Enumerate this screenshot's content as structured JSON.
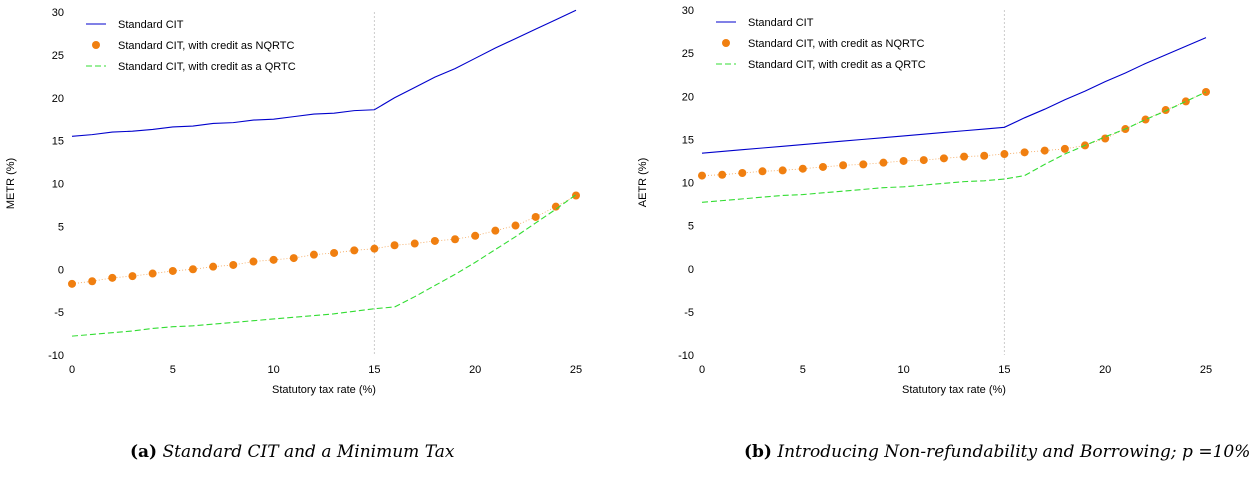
{
  "captions": {
    "left_prefix": "(a)",
    "left_text": "Standard CIT and a Minimum Tax",
    "right_prefix": "(b)",
    "right_text": "Introducing Non-refundability and Borrowing; p =10%"
  },
  "chart_data": [
    {
      "type": "line",
      "title": "",
      "xlabel": "Statutory tax rate (%)",
      "ylabel": "METR (%)",
      "xlim": [
        0,
        25
      ],
      "ylim": [
        -10,
        30
      ],
      "xticks": [
        0,
        5,
        10,
        15,
        20,
        25
      ],
      "yticks": [
        -10,
        -5,
        0,
        5,
        10,
        15,
        20,
        25,
        30
      ],
      "vline_x": 15,
      "legend_position": "top-left",
      "x": [
        0,
        1,
        2,
        3,
        4,
        5,
        6,
        7,
        8,
        9,
        10,
        11,
        12,
        13,
        14,
        15,
        16,
        17,
        18,
        19,
        20,
        21,
        22,
        23,
        24,
        25
      ],
      "series": [
        {
          "name": "Standard CIT",
          "color": "#0000cc",
          "style": "solid",
          "values": [
            15.5,
            15.7,
            16.0,
            16.1,
            16.3,
            16.6,
            16.7,
            17.0,
            17.1,
            17.4,
            17.5,
            17.8,
            18.1,
            18.2,
            18.5,
            18.6,
            20.0,
            21.2,
            22.4,
            23.4,
            24.6,
            25.8,
            26.9,
            28.0,
            29.1,
            30.2
          ]
        },
        {
          "name": "Standard CIT, with credit as NQRTC",
          "color": "#f07f10",
          "style": "dots",
          "values": [
            -1.7,
            -1.4,
            -1.0,
            -0.8,
            -0.5,
            -0.2,
            0.0,
            0.3,
            0.5,
            0.9,
            1.1,
            1.3,
            1.7,
            1.9,
            2.2,
            2.4,
            2.8,
            3.0,
            3.3,
            3.5,
            3.9,
            4.5,
            5.1,
            6.1,
            7.3,
            8.6
          ]
        },
        {
          "name": "Standard CIT, with credit as a QRTC",
          "color": "#33dd33",
          "style": "dashed",
          "values": [
            -7.8,
            -7.6,
            -7.4,
            -7.2,
            -6.9,
            -6.7,
            -6.6,
            -6.4,
            -6.2,
            -6.0,
            -5.8,
            -5.6,
            -5.4,
            -5.2,
            -4.9,
            -4.6,
            -4.4,
            -3.2,
            -1.9,
            -0.6,
            0.8,
            2.3,
            3.8,
            5.4,
            7.0,
            8.7
          ]
        }
      ]
    },
    {
      "type": "line",
      "title": "",
      "xlabel": "Statutory tax rate (%)",
      "ylabel": "AETR (%)",
      "xlim": [
        0,
        25
      ],
      "ylim": [
        -10,
        30
      ],
      "xticks": [
        0,
        5,
        10,
        15,
        20,
        25
      ],
      "yticks": [
        -10,
        -5,
        0,
        5,
        10,
        15,
        20,
        25,
        30
      ],
      "vline_x": 15,
      "legend_position": "top-left",
      "x": [
        0,
        1,
        2,
        3,
        4,
        5,
        6,
        7,
        8,
        9,
        10,
        11,
        12,
        13,
        14,
        15,
        16,
        17,
        18,
        19,
        20,
        21,
        22,
        23,
        24,
        25
      ],
      "series": [
        {
          "name": "Standard CIT",
          "color": "#0000cc",
          "style": "solid",
          "values": [
            13.4,
            13.6,
            13.8,
            14.0,
            14.2,
            14.4,
            14.6,
            14.8,
            15.0,
            15.2,
            15.4,
            15.6,
            15.8,
            16.0,
            16.2,
            16.4,
            17.5,
            18.5,
            19.6,
            20.6,
            21.7,
            22.7,
            23.8,
            24.8,
            25.8,
            26.8
          ]
        },
        {
          "name": "Standard CIT, with credit as NQRTC",
          "color": "#f07f10",
          "style": "dots",
          "values": [
            10.8,
            10.9,
            11.1,
            11.3,
            11.4,
            11.6,
            11.8,
            12.0,
            12.1,
            12.3,
            12.5,
            12.6,
            12.8,
            13.0,
            13.1,
            13.3,
            13.5,
            13.7,
            13.9,
            14.3,
            15.1,
            16.2,
            17.3,
            18.4,
            19.4,
            20.5
          ]
        },
        {
          "name": "Standard CIT, with credit as a QRTC",
          "color": "#33dd33",
          "style": "dashed",
          "values": [
            7.7,
            7.9,
            8.1,
            8.3,
            8.5,
            8.6,
            8.8,
            9.0,
            9.2,
            9.4,
            9.5,
            9.7,
            9.9,
            10.1,
            10.2,
            10.4,
            10.8,
            12.1,
            13.3,
            14.3,
            15.3,
            16.2,
            17.3,
            18.3,
            19.4,
            20.5
          ]
        }
      ]
    }
  ]
}
